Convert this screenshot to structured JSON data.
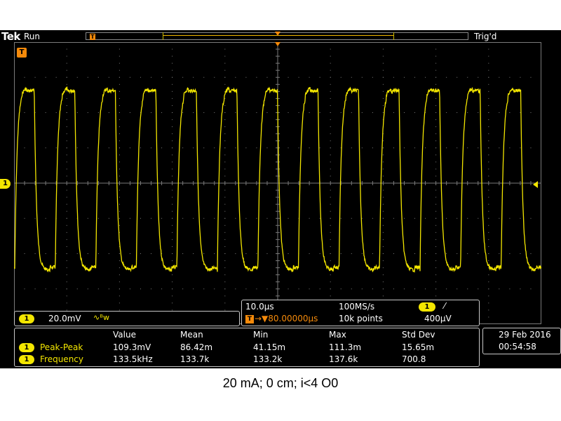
{
  "header": {
    "brand": "Tek",
    "acq_state": "Run",
    "trigger_state": "Trig'd",
    "record_trigger_icon": "T"
  },
  "markers": {
    "trigger_position_label": "T",
    "channel1_label": "1"
  },
  "channel": {
    "number": "1",
    "scale": "20.0mV",
    "bandwidth_icon": "∿ᴮw"
  },
  "timebase": {
    "scale": "10.0µs",
    "sample_rate": "100MS/s",
    "delay_icon": "T",
    "delay": "→▼80.00000µs",
    "record_length": "10k points",
    "trigger_channel": "1",
    "trigger_slope": "⁄",
    "trigger_level": "400µV"
  },
  "measurements": {
    "headers": [
      "Value",
      "Mean",
      "Min",
      "Max",
      "Std Dev"
    ],
    "rows": [
      {
        "channel": "1",
        "name": "Peak-Peak",
        "value": "109.3mV",
        "mean": "86.42m",
        "min": "41.15m",
        "max": "111.3m",
        "std": "15.65m"
      },
      {
        "channel": "1",
        "name": "Frequency",
        "value": "133.5kHz",
        "mean": "133.7k",
        "min": "133.2k",
        "max": "137.6k",
        "std": "700.8"
      }
    ]
  },
  "clock": {
    "date": "29 Feb  2016",
    "time": "00:54:58"
  },
  "caption": "20 mA; 0 cm; i<4 O0",
  "colors": {
    "trace": "#f3e600",
    "trigger": "#f58a0a",
    "grid": "#7a7a7a"
  }
}
